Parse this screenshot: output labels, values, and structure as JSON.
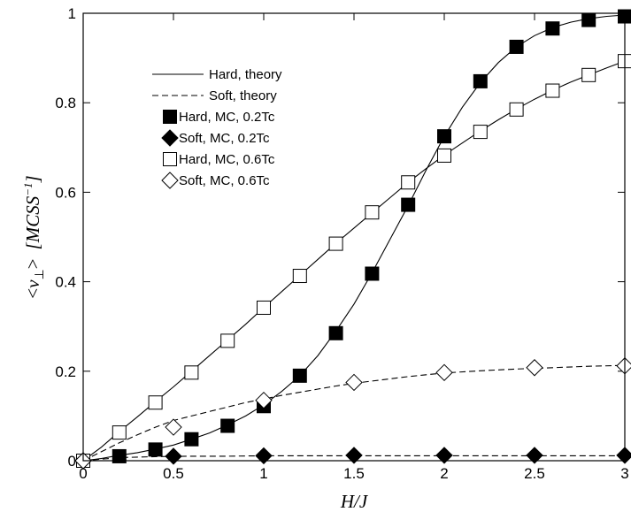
{
  "chart_data": {
    "type": "scatter",
    "title": "",
    "xlabel": "H/J",
    "ylabel": {
      "open": "<",
      "symbol": "ν",
      "subscript": "⊥",
      "close": ">",
      "units": "[MCSS",
      "units_exp": "−1",
      "units_close": "]"
    },
    "xlim": [
      0,
      3
    ],
    "ylim": [
      0,
      1
    ],
    "xticks": [
      0,
      0.5,
      1,
      1.5,
      2,
      2.5,
      3
    ],
    "yticks": [
      0,
      0.2,
      0.4,
      0.6,
      0.8,
      1
    ],
    "xtick_labels": [
      "0",
      "0.5",
      "1",
      "1.5",
      "2",
      "2.5",
      "3"
    ],
    "ytick_labels": [
      "0",
      "0.2",
      "0.4",
      "0.6",
      "0.8",
      "1"
    ],
    "legend_position": "top-left",
    "series": [
      {
        "name": "Hard, theory",
        "kind": "line",
        "dash": "solid",
        "color": "#000000",
        "x": [
          0,
          0.1,
          0.2,
          0.3,
          0.4,
          0.5,
          0.6,
          0.7,
          0.8,
          0.9,
          1.0,
          1.1,
          1.2,
          1.3,
          1.4,
          1.5,
          1.6,
          1.7,
          1.8,
          1.9,
          2.0,
          2.1,
          2.2,
          2.3,
          2.4,
          2.5,
          2.6,
          2.7,
          2.8,
          2.9,
          3.0
        ],
        "y": [
          0,
          0.005,
          0.012,
          0.018,
          0.026,
          0.035,
          0.048,
          0.062,
          0.08,
          0.1,
          0.125,
          0.155,
          0.19,
          0.235,
          0.29,
          0.35,
          0.42,
          0.495,
          0.57,
          0.65,
          0.725,
          0.79,
          0.845,
          0.89,
          0.925,
          0.95,
          0.968,
          0.98,
          0.988,
          0.993,
          0.996
        ]
      },
      {
        "name": "Hard, theory",
        "kind": "line",
        "dash": "solid",
        "color": "#000000",
        "x": [
          0,
          0.1,
          0.2,
          0.3,
          0.4,
          0.5,
          0.6,
          0.7,
          0.8,
          0.9,
          1.0,
          1.1,
          1.2,
          1.3,
          1.4,
          1.5,
          1.6,
          1.7,
          1.8,
          1.9,
          2.0,
          2.1,
          2.2,
          2.3,
          2.4,
          2.5,
          2.6,
          2.7,
          2.8,
          2.9,
          3.0
        ],
        "y": [
          0,
          0.03,
          0.065,
          0.098,
          0.132,
          0.165,
          0.2,
          0.235,
          0.27,
          0.305,
          0.342,
          0.378,
          0.414,
          0.45,
          0.486,
          0.52,
          0.554,
          0.588,
          0.622,
          0.653,
          0.683,
          0.71,
          0.737,
          0.762,
          0.786,
          0.808,
          0.828,
          0.846,
          0.862,
          0.878,
          0.893
        ]
      },
      {
        "name": "Soft, theory",
        "kind": "line",
        "dash": "dashed",
        "color": "#000000",
        "x": [
          0,
          0.1,
          0.2,
          0.3,
          0.4,
          0.5,
          0.6,
          0.7,
          0.8,
          0.9,
          1.0,
          1.1,
          1.2,
          1.3,
          1.4,
          1.5,
          1.6,
          1.7,
          1.8,
          1.9,
          2.0,
          2.2,
          2.4,
          2.6,
          2.8,
          3.0
        ],
        "y": [
          0,
          0.02,
          0.04,
          0.058,
          0.075,
          0.09,
          0.1,
          0.11,
          0.12,
          0.13,
          0.138,
          0.146,
          0.153,
          0.16,
          0.167,
          0.173,
          0.178,
          0.183,
          0.188,
          0.192,
          0.196,
          0.201,
          0.205,
          0.208,
          0.211,
          0.213
        ]
      },
      {
        "name": "Soft, theory",
        "kind": "line",
        "dash": "dashed",
        "color": "#000000",
        "x": [
          0,
          0.2,
          0.4,
          0.6,
          0.8,
          1.0,
          1.5,
          2.0,
          2.5,
          3.0
        ],
        "y": [
          0,
          0.007,
          0.009,
          0.01,
          0.01,
          0.011,
          0.011,
          0.011,
          0.011,
          0.011
        ]
      },
      {
        "name": "Hard, MC, 0.2Tc",
        "kind": "marker",
        "marker": "square",
        "filled": true,
        "x": [
          0,
          0.2,
          0.4,
          0.6,
          0.8,
          1.0,
          1.2,
          1.4,
          1.6,
          1.8,
          2.0,
          2.2,
          2.4,
          2.6,
          2.8,
          3.0
        ],
        "y": [
          0,
          0.01,
          0.025,
          0.048,
          0.078,
          0.122,
          0.19,
          0.285,
          0.418,
          0.572,
          0.725,
          0.848,
          0.925,
          0.966,
          0.985,
          0.993
        ]
      },
      {
        "name": "Soft, MC, 0.2Tc",
        "kind": "marker",
        "marker": "diamond",
        "filled": true,
        "x": [
          0,
          0.5,
          1.0,
          1.5,
          2.0,
          2.5,
          3.0
        ],
        "y": [
          0,
          0.01,
          0.011,
          0.012,
          0.012,
          0.012,
          0.012
        ]
      },
      {
        "name": "Hard, MC, 0.6Tc",
        "kind": "marker",
        "marker": "square",
        "filled": false,
        "x": [
          0,
          0.2,
          0.4,
          0.6,
          0.8,
          1.0,
          1.2,
          1.4,
          1.6,
          1.8,
          2.0,
          2.2,
          2.4,
          2.6,
          2.8,
          3.0
        ],
        "y": [
          0,
          0.063,
          0.13,
          0.197,
          0.268,
          0.342,
          0.413,
          0.485,
          0.555,
          0.622,
          0.682,
          0.735,
          0.785,
          0.827,
          0.862,
          0.893
        ]
      },
      {
        "name": "Soft, MC, 0.6Tc",
        "kind": "marker",
        "marker": "diamond",
        "filled": false,
        "x": [
          0,
          0.5,
          1.0,
          1.5,
          2.0,
          2.5,
          3.0
        ],
        "y": [
          0,
          0.075,
          0.135,
          0.175,
          0.197,
          0.208,
          0.212
        ]
      }
    ],
    "legend": [
      {
        "label": "Hard, theory",
        "kind": "line",
        "dash": "solid"
      },
      {
        "label": "Soft, theory",
        "kind": "line",
        "dash": "dashed"
      },
      {
        "label": "Hard, MC, 0.2Tc",
        "kind": "marker",
        "marker": "square",
        "filled": true
      },
      {
        "label": "Soft, MC, 0.2Tc",
        "kind": "marker",
        "marker": "diamond",
        "filled": true
      },
      {
        "label": "Hard, MC, 0.6Tc",
        "kind": "marker",
        "marker": "square",
        "filled": false
      },
      {
        "label": "Soft, MC, 0.6Tc",
        "kind": "marker",
        "marker": "diamond",
        "filled": false
      }
    ]
  }
}
